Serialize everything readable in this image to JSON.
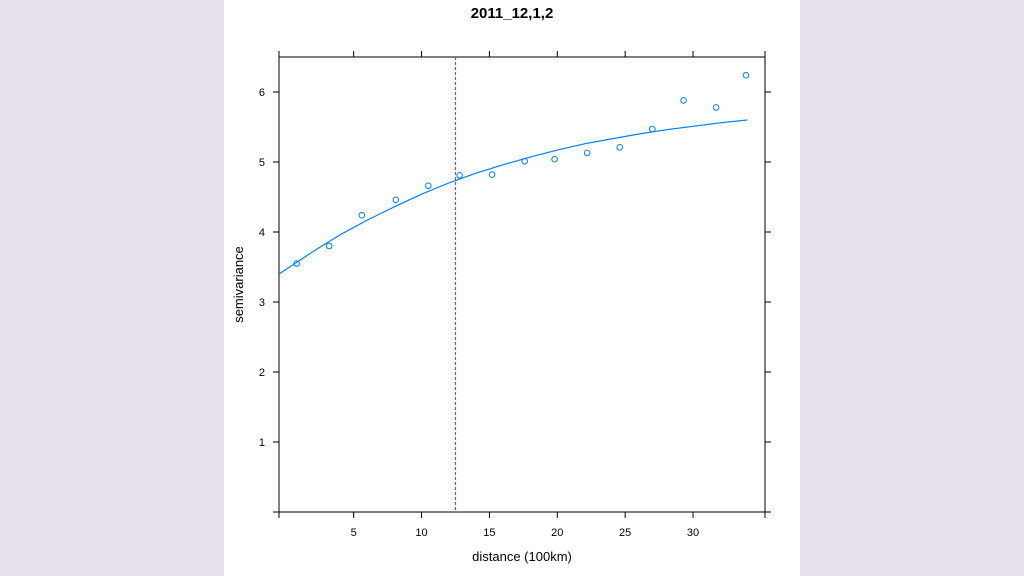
{
  "chart_data": {
    "type": "scatter",
    "title": "2011_12,1,2",
    "xlabel": "distance (100km)",
    "ylabel": "semivariance",
    "xlim": [
      -0.5,
      35.3
    ],
    "ylim": [
      0,
      6.5
    ],
    "x_ticks": [
      5,
      10,
      15,
      20,
      25,
      30
    ],
    "y_ticks": [
      1,
      2,
      3,
      4,
      5,
      6
    ],
    "grid": false,
    "points": {
      "x": [
        0.8,
        3.2,
        5.6,
        8.1,
        10.5,
        12.8,
        15.2,
        17.6,
        19.8,
        22.2,
        24.6,
        27.0,
        29.3,
        31.7,
        33.9
      ],
      "y": [
        3.55,
        3.8,
        4.24,
        4.46,
        4.66,
        4.81,
        4.82,
        5.01,
        5.04,
        5.13,
        5.21,
        5.47,
        5.88,
        5.78,
        6.24
      ],
      "color": "#0080ff"
    },
    "fitted_curve": {
      "color": "#0080ff",
      "x": [
        -0.5,
        2,
        4,
        6,
        8,
        10,
        12,
        14,
        16,
        18,
        20,
        22,
        24,
        26,
        28,
        30,
        32,
        34
      ],
      "y": [
        3.4,
        3.72,
        3.96,
        4.17,
        4.36,
        4.54,
        4.7,
        4.84,
        4.96,
        5.07,
        5.17,
        5.26,
        5.33,
        5.4,
        5.46,
        5.51,
        5.56,
        5.6
      ]
    },
    "vertical_line": {
      "x": 12.5,
      "color": "#e0302a",
      "style": "dashed"
    }
  }
}
